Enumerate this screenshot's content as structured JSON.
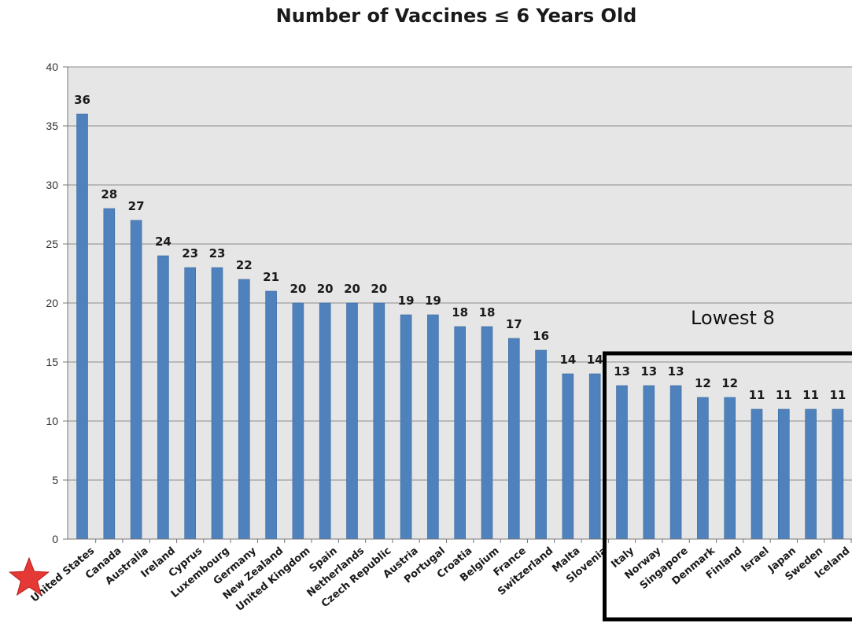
{
  "chart_data": {
    "type": "bar",
    "title": "Number of Vaccines ≤ 6 Years Old",
    "xlabel": "",
    "ylabel": "",
    "ylim": [
      0,
      40
    ],
    "yticks": [
      0,
      5,
      10,
      15,
      20,
      25,
      30,
      35,
      40
    ],
    "grid": true,
    "categories": [
      "United States",
      "Canada",
      "Australia",
      "Ireland",
      "Cyprus",
      "Luxembourg",
      "Germany",
      "New Zealand",
      "United Kingdom",
      "Spain",
      "Netherlands",
      "Czech Republic",
      "Austria",
      "Portugal",
      "Croatia",
      "Belgium",
      "France",
      "Switzerland",
      "Malta",
      "Slovenia",
      "Italy",
      "Norway",
      "Singapore",
      "Denmark",
      "Finland",
      "Israel",
      "Japan",
      "Sweden",
      "Iceland"
    ],
    "values": [
      36,
      28,
      27,
      24,
      23,
      23,
      22,
      21,
      20,
      20,
      20,
      20,
      19,
      19,
      18,
      18,
      17,
      16,
      14,
      14,
      13,
      13,
      13,
      12,
      12,
      11,
      11,
      11,
      11
    ],
    "bar_color": "#4f81bd",
    "plot_background": "#e6e6e6",
    "annotations": [
      {
        "text": "Lowest 8",
        "type": "box",
        "from_category": "Italy",
        "to_category": "Iceland"
      },
      {
        "type": "star-marker",
        "category": "United States",
        "color": "#e53935"
      }
    ]
  }
}
